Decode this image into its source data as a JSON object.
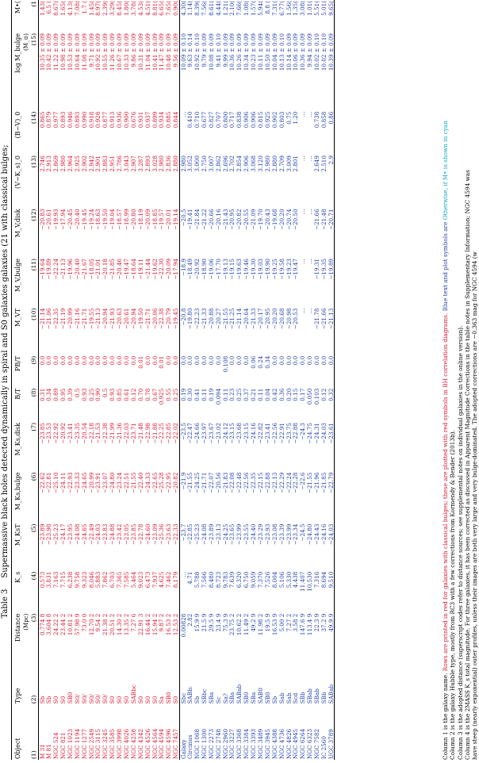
{
  "caption": {
    "label": "Table 3",
    "title": "Supermassive black holes detected dynamically in spiral and S0 galaxies galaxies (21 with classical bulges;",
    "line2_plain": "Column 1 is the galaxy name.",
    "line2_red": "Rows are printed in red for galaxies with classical bulges; these are plotted with red symbols in BH correlation diagrams.",
    "line2_blue": "Blue text and plot symbols are",
    "line2_cyan": "Otherwise, if M• is shown in cyan"
  },
  "headers": {
    "row1": [
      "Object",
      "Type",
      "Distance",
      "K_s",
      "M_KsT",
      "M_Ks,bulge",
      "M_Ks,disk",
      "B/T",
      "PB/T",
      "M_VT",
      "M_V,bulge",
      "M_V,disk",
      "(V−K_s)_0",
      "(B−V)_0",
      "log M_bulge",
      "M•("
    ],
    "row2": [
      "",
      "",
      "(Mpc)",
      "",
      "",
      "",
      "",
      "",
      "",
      "",
      "",
      "",
      "",
      "",
      "(M_⊙)",
      ""
    ],
    "row3": [
      "(1)",
      "(2)",
      "(3)",
      "(4)",
      "(5)",
      "(6)",
      "(7)",
      "(8)",
      "(9)",
      "(10)",
      "(11)",
      "(12)",
      "(13)",
      "(14)",
      "(15)",
      "(1"
    ]
  },
  "rows_a": [
    {
      "c": "red",
      "v": [
        "M 31",
        "Sb",
        "0.774 8",
        "0.573",
        "−23.89",
        "−22.62",
        "−23.85",
        "0.31",
        "0.0",
        "−21.14",
        "−19.64",
        "−20.83",
        "2.746",
        "0.865",
        "10.35 ± 0.09",
        "1.43("
      ]
    },
    {
      "c": "red",
      "v": [
        "M 81",
        "Sb",
        "3.604 8",
        "3.831",
        "−23.98",
        "−22.81",
        "−23.53",
        "0.34",
        "0.0",
        "−21.06",
        "−19.89",
        "−20.61",
        "2.913",
        "0.879",
        "10.42 ± 0.09",
        "6.5 ("
      ]
    },
    {
      "c": "red",
      "v": [
        "NGC 524",
        "S0",
        "24.22 2",
        "7.163",
        "−25.23",
        "−25.10",
        "−22.92",
        "0.89",
        "0.0",
        "−22.35",
        "−22.24",
        "−19.93",
        "2.869",
        "0.977",
        "11.22 ± 0.09",
        "8.67("
      ]
    },
    {
      "c": "red",
      "v": [
        "NGC 821",
        "S0",
        "23.44 2",
        "7.715",
        "−24.17",
        "−24.11",
        "−20.92",
        "0.95",
        "0.0",
        "−21.19",
        "−21.13",
        "−17.94",
        "2.980",
        "0.893",
        "10.98 ± 0.09",
        "1.65("
      ]
    },
    {
      "c": "red",
      "v": [
        "NGC 1023",
        "SB0",
        "10.81 2",
        "6.238",
        "−23.95",
        "−22.93",
        "−23.41",
        "0.39",
        "0.0",
        "−20.99",
        "−19.96",
        "−20.45",
        "2.964",
        "0.946",
        "10.53 ± 0.09",
        "4.13("
      ]
    },
    {
      "c": "red",
      "v": [
        "NGC 1194",
        "S0/",
        "57.98 9",
        "9.758",
        "−24.08",
        "−23.33",
        "−23.35",
        "0.5",
        "0.0",
        "−21.16",
        "−20.40",
        "−20.40",
        "2.925",
        "0.893",
        "10.64 ± 0.09",
        "7.08("
      ]
    },
    {
      "c": "red",
      "v": [
        "NGC 1277",
        "S0/",
        "73.0 0",
        "9.323",
        "−24.65",
        "−24.65",
        "−20.54",
        "0.93",
        "0.0",
        "−21.71",
        "−21.67",
        "−19.45",
        "2.902",
        "0.990",
        "11.08 ± 0.09",
        "1.7 ("
      ]
    },
    {
      "c": "red",
      "v": [
        "NGC 2549",
        "S0/",
        "12.70 2",
        "8.046",
        "−22.49",
        "−20.99",
        "−22.18",
        "0.25",
        "0.0",
        "−19.55",
        "−18.05",
        "−19.24",
        "2.942",
        "0.918",
        "9.71 ± 0.09",
        "1.45("
      ]
    },
    {
      "c": "red",
      "v": [
        "NGC 3115",
        "S0/",
        "9.54 2",
        "5.883",
        "−24.03",
        "−23.91",
        "−21.53",
        "0.90",
        "0.0",
        "−21.13",
        "−21.01",
        "−18.63",
        "2.901",
        "0.928",
        "10.92 ± 0.09",
        "8.97("
      ]
    },
    {
      "c": "red",
      "v": [
        "NGC 3245",
        "S0/",
        "21.38 2",
        "7.862",
        "−23.83",
        "−23.07",
        "−22.38",
        "0.5",
        "0.0",
        "−20.94",
        "−20.18",
        "−19.50",
        "2.883",
        "0.877",
        "10.55 ± 0.09",
        "2.39("
      ]
    },
    {
      "c": "red",
      "v": [
        "NGC 3585",
        "S0",
        "20.51 2",
        "6.703",
        "−24.88",
        "−24.80",
        "−21.99",
        "0.93",
        "0.0",
        "−21.93",
        "−21.85",
        "−19.04",
        "2.951",
        "0.913",
        "11.26 ± 0.09",
        "3.29("
      ]
    },
    {
      "c": "red",
      "v": [
        "NGC 3998",
        "S0",
        "14.30 2",
        "7.365",
        "−23.42",
        "−23.24",
        "−21.36",
        "0.85",
        "0.0",
        "−20.63",
        "−20.46",
        "−18.57",
        "2.786",
        "0.936",
        "10.67 ± 0.09",
        "8.45("
      ]
    },
    {
      "c": "red",
      "v": [
        "NGC 4026",
        "S0",
        "13.35 2",
        "7.585",
        "−23.05",
        "−22.51",
        "−22.03",
        "0.61",
        "0.0",
        "−20.61",
        "−19.47",
        "−18.99",
        "3.043",
        "0.900",
        "10.33 ± 0.09",
        "1.80("
      ]
    },
    {
      "c": "red",
      "v": [
        "NGC 4258",
        "SABbc",
        "7.27 6",
        "5.464",
        "−23.85",
        "−21.55",
        "−23.71",
        "0.12",
        "0.0",
        "−20.94",
        "−18.64",
        "−20.80",
        "2.907",
        "0.676",
        "9.86 ± 0.09",
        "3.78("
      ]
    },
    {
      "c": "red",
      "v": [
        "NGC 4342",
        "S0",
        "22.91 3",
        "9.023",
        "−22.78",
        "−22.40",
        "−21.48",
        "0.70",
        "0.01",
        "−19.50",
        "−19.11",
        "−18.19",
        "3.287",
        "0.931",
        "10.31 ± 0.09",
        "4.53("
      ]
    },
    {
      "c": "red",
      "v": [
        "NGC 4526",
        "S0",
        "16.44 2",
        "6.473",
        "−24.60",
        "−24.33",
        "−22.98",
        "0.78",
        "0.0",
        "−21.71",
        "−21.44",
        "−20.09",
        "2.893",
        "0.937",
        "11.04 ± 0.09",
        "4.51("
      ]
    },
    {
      "c": "red",
      "v": [
        "NGC 4564",
        "S0",
        "15.94 2",
        "7.937",
        "−23.09",
        "−22.65",
        "−21.88",
        "0.67",
        "0.0",
        "−20.06",
        "−19.62",
        "−18.85",
        "3.028",
        "0.899",
        "10.41 ± 0.09",
        "8.81("
      ]
    },
    {
      "c": "red",
      "v": [
        "NGC 4594",
        "Sa",
        "9.87 2",
        "4.625",
        "−25.36",
        "−25.28",
        "−22.25",
        "0.925",
        "0.01",
        "−22.38",
        "−22.30",
        "−19.57",
        "2.980",
        "0.934",
        "11.47 ± 0.09",
        "6.65("
      ]
    },
    {
      "c": "red",
      "v": [
        "NGC 4596",
        "SB0",
        "16.53 2",
        "7.462",
        "−23.63",
        "−22.95",
        "−22.85",
        "0.55",
        "0.0",
        "−20.79",
        "−20.09",
        "−20.01",
        "2.836",
        "0.885",
        "10.48 ± 0.09",
        "7.65("
      ]
    },
    {
      "c": "red",
      "v": [
        "NGC 7457",
        "S0",
        "12.53 2",
        "8.179",
        "−22.33",
        "−20.82",
        "−22.02",
        "0.25",
        "0.0",
        "−19.45",
        "−17.94",
        "−19.14",
        "2.880",
        "0.844",
        "9.56 ± 0.09",
        "0.90("
      ]
    }
  ],
  "rows_b": [
    {
      "c": "blue",
      "v": [
        "Galaxy",
        "Sbc",
        "0.00828",
        "…",
        "−23.7",
        "−21.9",
        "−23.5",
        "0.19",
        "0.0",
        "−20.8",
        "−18.9",
        "−20.5",
        "2.980",
        "…",
        "10.09 ± 0.10",
        "4.30("
      ]
    },
    {
      "c": "blue",
      "v": [
        "Circinus",
        "SABb:",
        "2.82",
        "4.71",
        "−22.85",
        "−21.55",
        "−22.47",
        "0.30",
        "0.0",
        "−19.80",
        "−18.49",
        "−19.41",
        "3.052",
        "0.410",
        "9.63 ± 0.14",
        "1.14("
      ]
    },
    {
      "c": "blue",
      "v": [
        "NGC 1068",
        "Sb",
        "15.9 9",
        "5.788",
        "−25.23",
        "−24.25",
        "−24.66",
        "0.41",
        "0.0",
        "−22.23",
        "−20.92",
        "−21.84",
        "3.000",
        "0.710",
        "10.92 ± 0.10",
        "8.39("
      ]
    },
    {
      "c": "blue",
      "v": [
        "NGC 1300",
        "SBbc",
        "21.5 9",
        "7.566",
        "−24.08",
        "−21.71",
        "−23.97",
        "0.11",
        "0.0",
        "−21.33",
        "−18.90",
        "−21.22",
        "2.750",
        "0.677",
        "9.79 ± 0.09",
        "7.56("
      ]
    },
    {
      "c": "blue",
      "v": [
        "NGC 2273",
        "SBa",
        "29.5 9",
        "8.480",
        "−23.89",
        "−22.07",
        "−23.67",
        "0.19",
        "0.0",
        "−20.88",
        "−19.06",
        "−20.66",
        "3.007",
        "0.827",
        "10.08 ± 0.09",
        "8.61("
      ]
    },
    {
      "c": "blue",
      "v": [
        "NGC 2748",
        "Sc",
        "23.4 9",
        "8.723",
        "−23.13",
        "−20.56",
        "−23.02",
        "0.094",
        "0.0",
        "−20.27",
        "−17.70",
        "−20.16",
        "2.862",
        "0.707",
        "9.41 ± 0.10",
        "4.44("
      ]
    },
    {
      "c": "blue",
      "v": [
        "NGC 2960",
        "Sa?",
        "75.3 9",
        "9.783",
        "−24.25",
        "−21.83",
        "−24.12",
        "0.11",
        "0.108",
        "−21.55",
        "−19.13",
        "−21.43",
        "2.696",
        "0.800",
        "9.99 ± 0.09",
        "1.21("
      ]
    },
    {
      "c": "blue",
      "v": [
        "NGC 3227",
        "SBa",
        "23.75 2",
        "7.639",
        "−23.65",
        "−22.08",
        "−23.15",
        "0.23",
        "0.0",
        "−21.25",
        "−19.15",
        "−20.95",
        "2.702",
        "0.717",
        "10.36 ± 0.09",
        "2.10("
      ]
    },
    {
      "c": "blue",
      "v": [
        "NGC 3368",
        "SABab",
        "10.62 2",
        "6.320",
        "−23.99",
        "−22.48",
        "−23.68",
        "0.25",
        "0.0",
        "−21.14",
        "−19.63",
        "−20.82",
        "2.854",
        "0.838",
        "10.26 ± 0.09",
        "7.66("
      ]
    },
    {
      "c": "blue",
      "v": [
        "NGC 3384",
        "SB0",
        "11.49 2",
        "6.750",
        "−23.55",
        "−22.56",
        "−23.15",
        "0.37",
        "0.0",
        "−20.64",
        "−19.46",
        "−20.55",
        "2.906",
        "0.906",
        "10.34 ± 0.09",
        "1.08("
      ]
    },
    {
      "c": "blue",
      "v": [
        "NGC 3393",
        "SBa",
        "49.2 9",
        "9.059",
        "−24.40",
        "−22.35",
        "−24.16",
        "0.21",
        "0.06",
        "−21.33",
        "−19.30",
        "−21.09",
        "3.068",
        "0.906",
        "10.23 ± 0.09",
        "1.57("
      ]
    },
    {
      "c": "blue",
      "v": [
        "NGC 3489",
        "SAB0",
        "11.98 2",
        "7.370",
        "−23.29",
        "−22.15",
        "−22.82",
        "0.11",
        "0.24",
        "−20.17",
        "−19.03",
        "−19.70",
        "3.120",
        "0.815",
        "10.11 ± 0.09",
        "5.94("
      ]
    },
    {
      "c": "blue",
      "v": [
        "NGC 3945",
        "SB0",
        "19.5 9",
        "7.526",
        "−23.93",
        "−22.88",
        "−23.41",
        "0.04",
        "0.34",
        "−20.95",
        "−19.90",
        "−20.43",
        "2.980",
        "0.925",
        "10.50 ± 0.09",
        "8.8 ("
      ]
    },
    {
      "c": "blue",
      "v": [
        "NGC 4388",
        "Sb",
        "16.53 9",
        "8.004",
        "−23.08",
        "−22.13",
        "−22.56",
        "0.42",
        "0.0",
        "−20.20",
        "−19.25",
        "−19.68",
        "2.880",
        "0.902",
        "10.04 ± 0.09",
        "7.31("
      ]
    },
    {
      "c": "blue",
      "v": [
        "NGC 4736",
        "Sab",
        "5.00 2",
        "5.106",
        "−23.39",
        "−22.29",
        "−22.91",
        "0.36",
        "0.0",
        "−20.68",
        "−19.58",
        "−20.20",
        "2.709",
        "0.803",
        "10.13 ± 0.10",
        "6.77("
      ]
    },
    {
      "c": "blue",
      "v": [
        "NGC 4826",
        "Sab",
        "7.27 2",
        "5.330",
        "−23.99",
        "−22.24",
        "−23.75",
        "0.20",
        "0.0",
        "−20.98",
        "−19.23",
        "−20.74",
        "3.009",
        "0.75",
        "10.14 ± 0.09",
        "1.56("
      ]
    },
    {
      "c": "blue",
      "v": [
        "NGC 4945",
        "Scd",
        "3.58 2",
        "4.438",
        "−23.34",
        "−22.28",
        "−22.88",
        "0.15",
        "0.0",
        "−20.53",
        "−19.47",
        "−20.50",
        "2.801",
        "1.20",
        "10.06 ± 0.09",
        "1.35("
      ]
    },
    {
      "c": "blue",
      "v": [
        "NGC 6264",
        "SBb",
        "147.6 9",
        "11.407",
        "−24.5",
        "−22.6",
        "−24.3",
        "0.17",
        "0.0",
        "…",
        "…",
        "…",
        "…",
        "…",
        "10.36 ± 0.09",
        "3.08("
      ]
    },
    {
      "c": "blue",
      "v": [
        "NGC 6323",
        "SBab",
        "113.4 9",
        "10.530",
        "−24.80",
        "−21.55",
        "−24.75",
        "0.050",
        "0.0",
        "…",
        "…",
        "…",
        "…",
        "…",
        "9.94 ± 0.09",
        "1.01("
      ]
    },
    {
      "c": "blue",
      "v": [
        "NGC 7582",
        "SBab",
        "22.3 9",
        "7.316",
        "−24.43",
        "−21.96",
        "−24.31",
        "0.103",
        "0.0",
        "−21.78",
        "−19.31",
        "−21.66",
        "2.649",
        "0.738",
        "10.02 ± 0.10",
        "5.51("
      ]
    },
    {
      "c": "blue",
      "v": [
        "IC 2560",
        "SBb",
        "37.2 9",
        "8.694",
        "−24.16",
        "−21.85",
        "−24.03",
        "0.12",
        "0.0",
        "−21.66",
        "−19.35",
        "−21.48",
        "2.510",
        "0.858",
        "10.02 ± 0.10",
        "5.01("
      ]
    },
    {
      "c": "blue",
      "v": [
        "UGC 3789",
        "SABab",
        "49.9 9",
        "9.510",
        "−24.03",
        "−22.79",
        "−23.61",
        "0.32",
        "0.0",
        "−21.13",
        "−19.89",
        "−20.71",
        "2.9",
        "0.86",
        "10.39 ± 0.09",
        "9.65("
      ]
    }
  ],
  "notes": [
    "Column 2 is the galaxy Hubble type, mostly from RC3 with a few corrections from Kormendy & Bender (2013b).",
    "Column 3 is the adopted distance (superscript codes refer to distance sources; see supplemental notes on individual galaxies in the online version).",
    "Column 4 is the 2MASS K_s total magnitude. For three galaxies, it has been corrected as discussed in Apparent Magnitude Corrections in the table notes in Supplementary Information; NGC 4594 was",
    "      have steep (nearly exponential) outer profiles, unless their images are both very large and very bulge-dominated. The adopted corrections are −0.363 mag for NGC 4594 (w",
    "      K_s and the 2MASS K_s at the same radius; the corrections were determined graphically, and the resulting mean K_s correction is used on the other entries in the table.",
    "Columns 5 – 7 are the corresponding total, (pseudo)bulge, and disk K_s-band absolute magnitudes based on the adopted distances and Galactic absorption corrections from Schlafl",
    "      K_s-band bulge magnitudes were determined by combining the total magnitudes with the bulge-to-total ratios in Column 8; the adopted (B/T) values are discussed in Section 6.",
    "      SBs), they are determined in the optical but can be used in the infrared with relatively small errors. Parameters for the Galaxy and for Circinus are summarized further in",
    "Columns 10 – 12 list total, (pseudo)bulge and disk absolute magnitudes in V band. (V−K_s)_0 listed in Column 13 comes from the integrated photometry of the galaxy and B−V from RC3.",
    "      \"integrated photometry\" B_T values and subtracted (B−V)_T, usually from RC3. When the RC3 or Hyperleda magnitude gave a much more realistic (V−K_s)_0 color, we",
    "      the same as the K_s-band values. For two galaxies, optical and infrared measurements imply different (pseudo)bulge-to-total ratios. We then used (B/T)_V = 0.25 for M 31",
    "Columns 13 and 14 are V−K_s and B−V colors of the galaxy corrected for Galactic reddening."
  ]
}
